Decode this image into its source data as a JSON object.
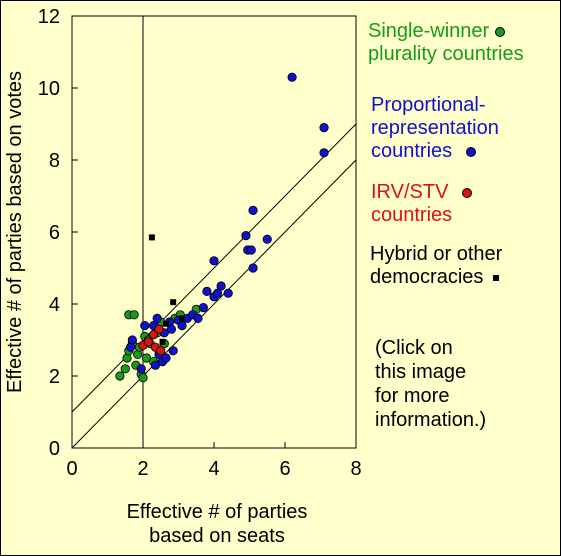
{
  "chart_data": {
    "type": "scatter",
    "xlabel_lines": [
      "Effective # of parties",
      "based on seats"
    ],
    "ylabel": "Effective # of parties based on votes",
    "xlim": [
      0,
      8
    ],
    "ylim": [
      0,
      12
    ],
    "x_ticks": [
      "0",
      "2",
      "4",
      "6",
      "8"
    ],
    "y_ticks": [
      "0",
      "2",
      "4",
      "6",
      "8",
      "10",
      "12"
    ],
    "vertical_reference_x": 2,
    "reference_lines": [
      {
        "intercept": 0,
        "slope": 1
      },
      {
        "intercept": 1,
        "slope": 1
      }
    ],
    "series": [
      {
        "name_lines": [
          "Single-winner",
          "plurality countries"
        ],
        "marker": "circle",
        "color": "#1a9a1a",
        "points": [
          [
            1.35,
            2.0
          ],
          [
            1.5,
            2.2
          ],
          [
            1.55,
            2.5
          ],
          [
            1.6,
            2.7
          ],
          [
            1.6,
            3.7
          ],
          [
            1.7,
            2.9
          ],
          [
            1.75,
            3.7
          ],
          [
            1.8,
            2.3
          ],
          [
            1.85,
            2.6
          ],
          [
            1.9,
            2.8
          ],
          [
            1.95,
            2.05
          ],
          [
            2.0,
            1.95
          ],
          [
            2.05,
            3.1
          ],
          [
            2.1,
            2.5
          ],
          [
            2.15,
            3.0
          ],
          [
            2.2,
            2.9
          ],
          [
            2.3,
            2.4
          ],
          [
            2.4,
            3.2
          ],
          [
            2.5,
            3.5
          ],
          [
            2.6,
            2.9
          ],
          [
            2.9,
            3.6
          ],
          [
            3.05,
            3.7
          ],
          [
            3.5,
            3.85
          ]
        ]
      },
      {
        "name_lines": [
          "Proportional-",
          "representation",
          "countries"
        ],
        "marker": "circle",
        "color": "#1111cc",
        "points": [
          [
            1.65,
            2.8
          ],
          [
            1.7,
            3.0
          ],
          [
            1.95,
            2.2
          ],
          [
            2.05,
            3.4
          ],
          [
            2.3,
            3.4
          ],
          [
            2.35,
            2.3
          ],
          [
            2.4,
            3.6
          ],
          [
            2.45,
            2.6
          ],
          [
            2.55,
            2.4
          ],
          [
            2.6,
            3.2
          ],
          [
            2.65,
            2.5
          ],
          [
            2.75,
            3.5
          ],
          [
            2.8,
            3.3
          ],
          [
            2.85,
            2.7
          ],
          [
            3.0,
            3.55
          ],
          [
            3.1,
            3.4
          ],
          [
            3.25,
            3.6
          ],
          [
            3.4,
            3.7
          ],
          [
            3.55,
            3.6
          ],
          [
            3.7,
            3.9
          ],
          [
            3.8,
            4.35
          ],
          [
            4.0,
            4.2
          ],
          [
            4.0,
            5.2
          ],
          [
            4.1,
            4.3
          ],
          [
            4.2,
            4.5
          ],
          [
            4.4,
            4.3
          ],
          [
            4.9,
            5.9
          ],
          [
            4.95,
            5.5
          ],
          [
            5.05,
            5.5
          ],
          [
            5.1,
            5.0
          ],
          [
            5.1,
            6.6
          ],
          [
            5.5,
            5.8
          ],
          [
            6.2,
            10.3
          ],
          [
            7.1,
            8.2
          ],
          [
            7.1,
            8.9
          ]
        ]
      },
      {
        "name_lines": [
          "IRV/STV",
          "countries"
        ],
        "marker": "circle",
        "color": "#dd1111",
        "points": [
          [
            2.0,
            2.85
          ],
          [
            2.15,
            2.95
          ],
          [
            2.3,
            3.15
          ],
          [
            2.45,
            3.3
          ],
          [
            2.35,
            2.8
          ],
          [
            2.5,
            2.7
          ]
        ]
      },
      {
        "name_lines": [
          "Hybrid or other",
          "democracies"
        ],
        "marker": "square",
        "color": "#000000",
        "points": [
          [
            2.25,
            5.85
          ],
          [
            2.65,
            3.45
          ],
          [
            2.85,
            4.05
          ],
          [
            3.1,
            3.6
          ],
          [
            2.55,
            2.95
          ]
        ]
      }
    ]
  },
  "note_lines": [
    "(Click on",
    "this image",
    "for more",
    "information.)"
  ]
}
